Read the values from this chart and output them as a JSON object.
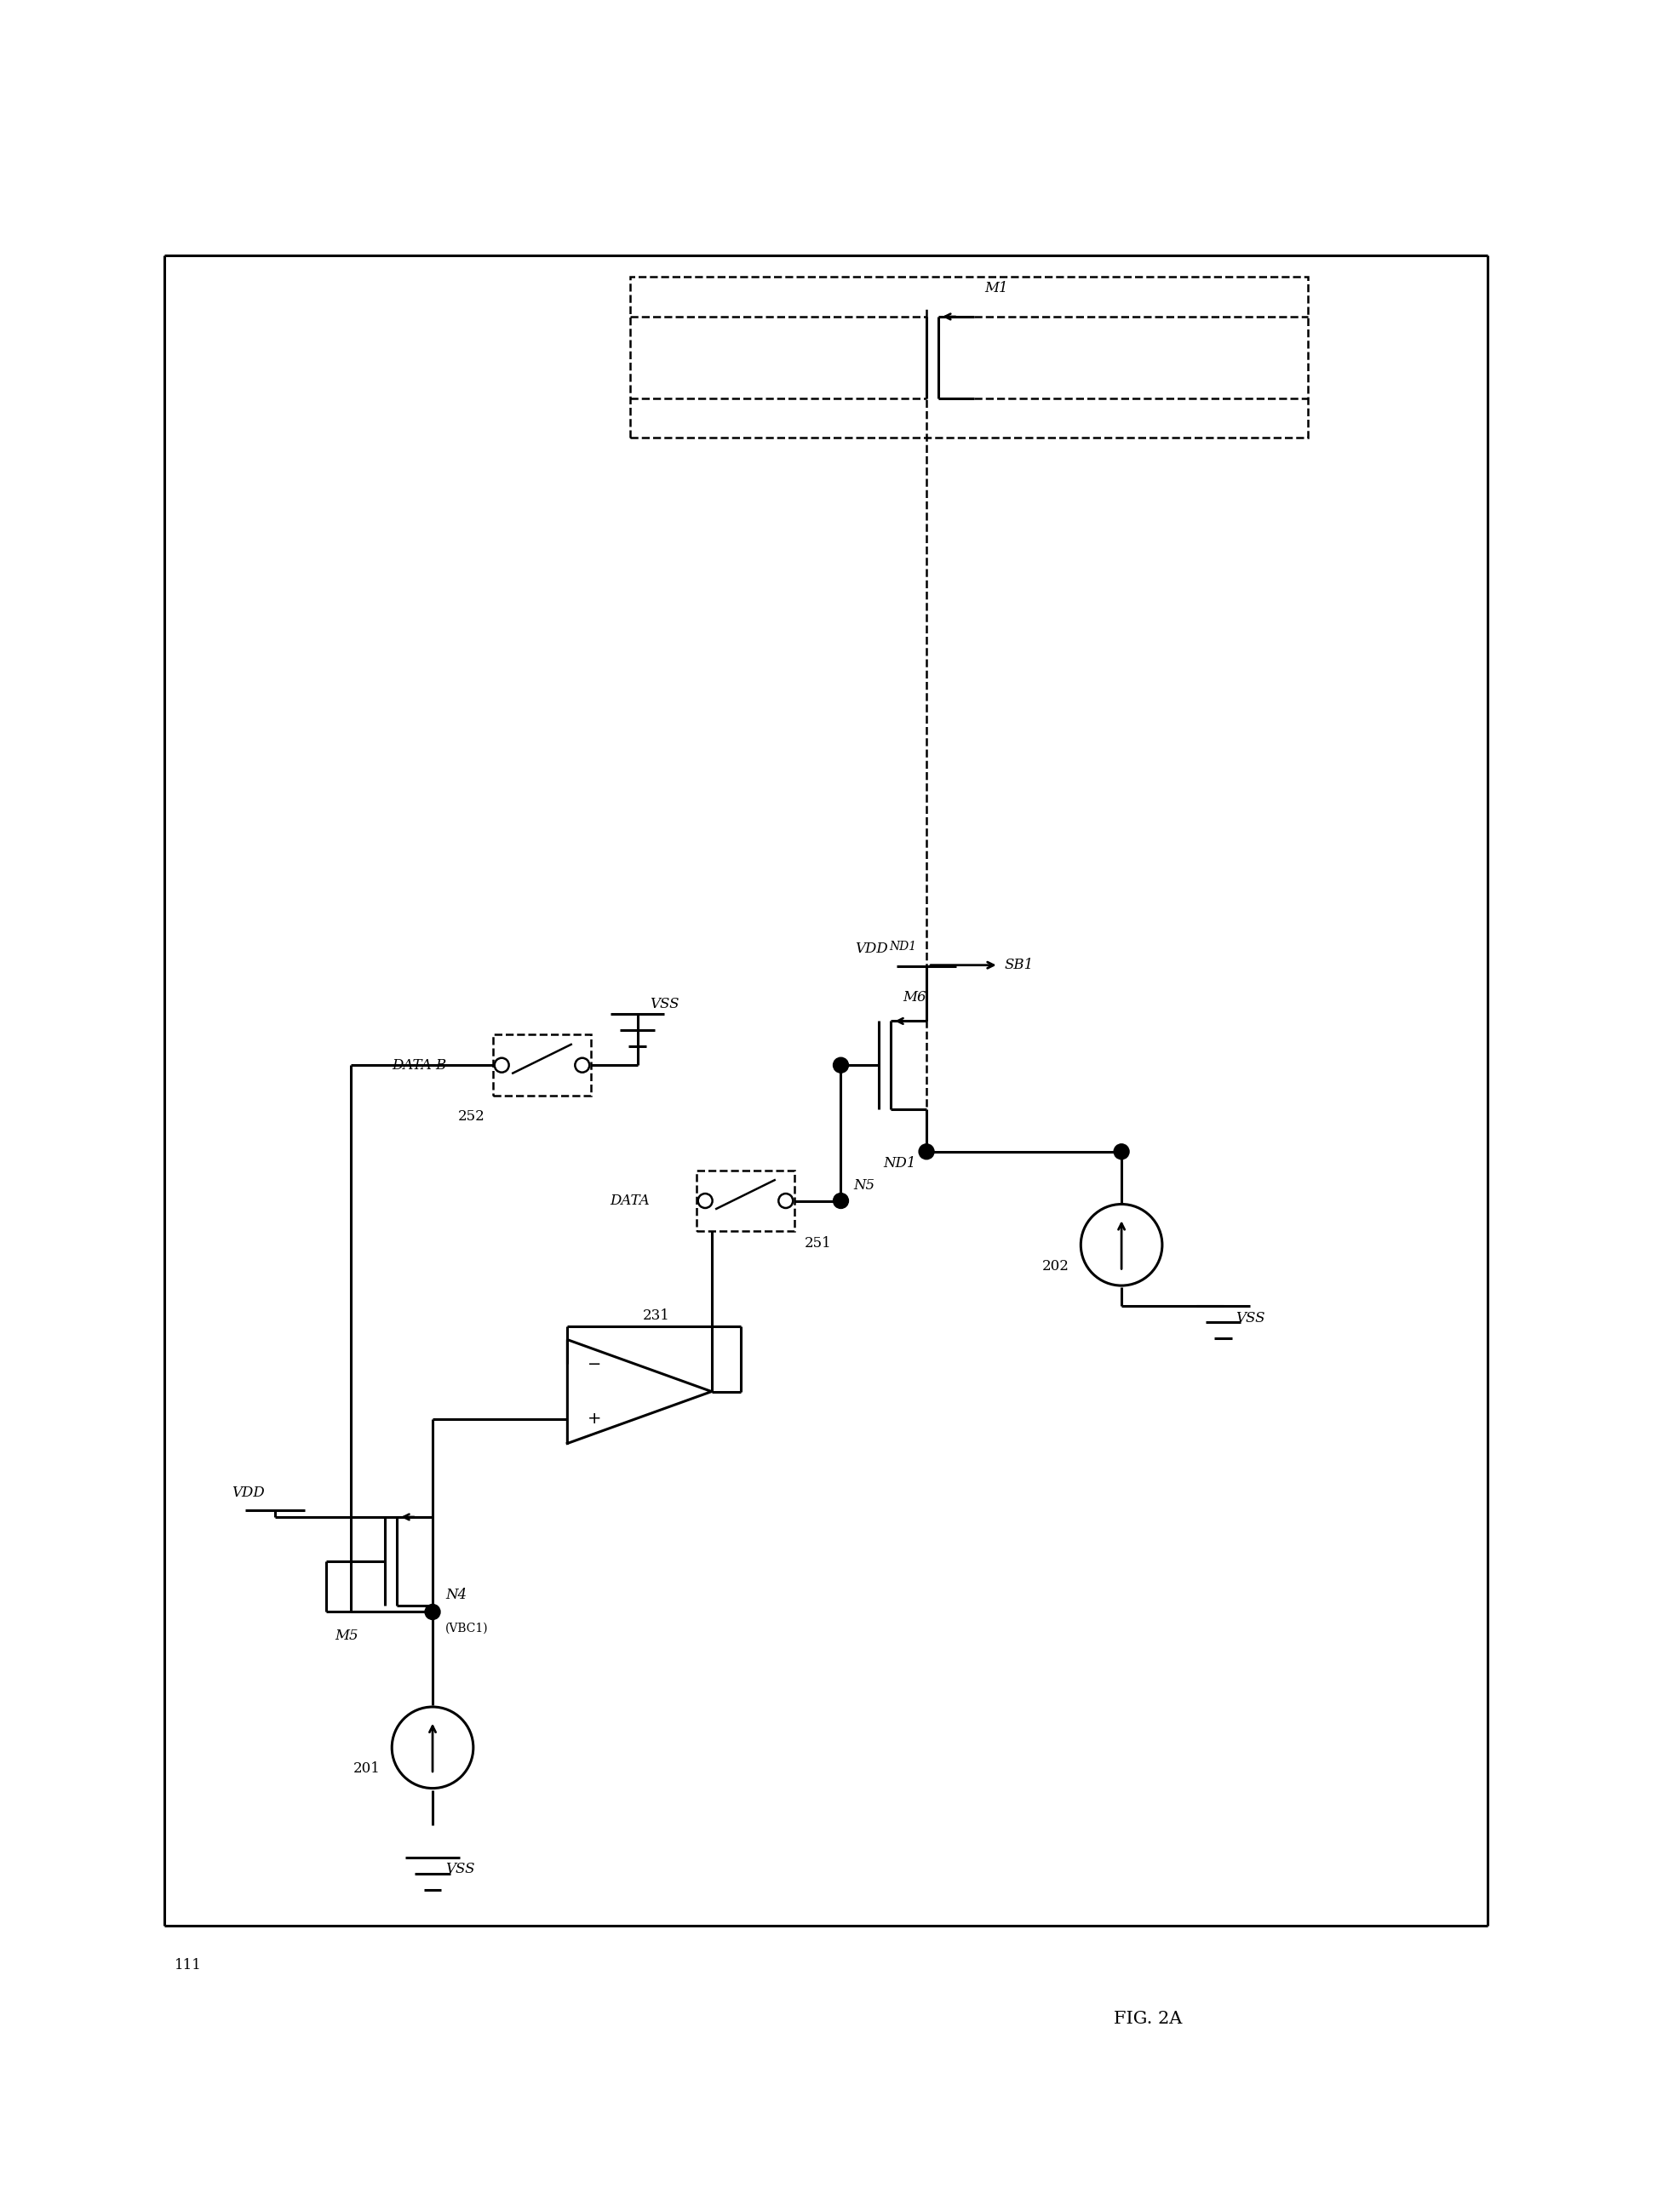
{
  "fig_width": 19.73,
  "fig_height": 25.96,
  "bg_color": "#ffffff",
  "lc": "#000000",
  "lw": 2.2,
  "lw_thin": 1.8,
  "fs": 12,
  "fs_sm": 10,
  "title": "FIG. 2A",
  "lbl_111": "111",
  "lbl_201": "201",
  "lbl_202": "202",
  "lbl_231": "231",
  "lbl_251": "251",
  "lbl_252": "252",
  "lbl_M1": "M1",
  "lbl_M5": "M5",
  "lbl_M6": "M6",
  "lbl_N4": "N4",
  "lbl_N5": "N5",
  "lbl_ND1": "ND1",
  "lbl_SB1": "SB1",
  "lbl_VDD": "VDD",
  "lbl_VSS": "VSS",
  "lbl_VBC1": "(VBC1)",
  "lbl_DATA": "DATA",
  "lbl_DATAB": "DATA B"
}
